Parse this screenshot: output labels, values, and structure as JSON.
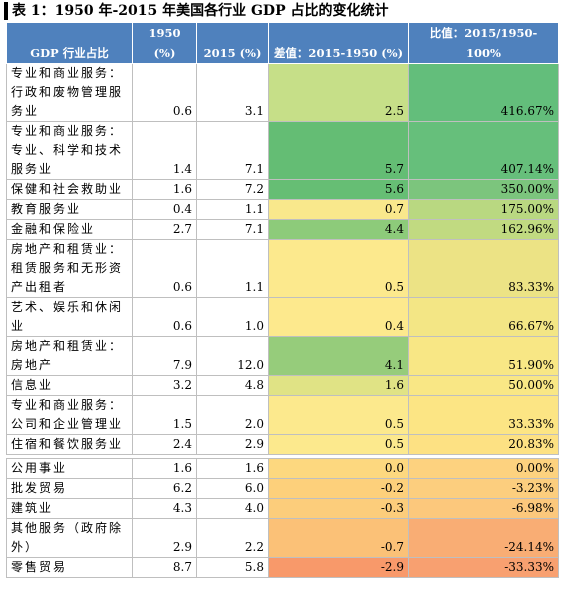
{
  "header": {
    "title": "表 1：1950 年-2015 年美国各行业 GDP 占比的变化统计"
  },
  "table": {
    "columns": [
      "GDP 行业占比",
      "1950 (%)",
      "2015 (%)",
      "差值：2015-1950 (%)",
      "比值：2015/1950-100%"
    ],
    "rows": [
      {
        "cells": [
          "专业和商业服务：行政和废物管理服务业",
          "0.6",
          "3.1",
          "2.5",
          "416.67%"
        ],
        "colors": [
          "#c6df88",
          "#63be7b"
        ]
      },
      {
        "cells": [
          "专业和商业服务：专业、科学和技术服务业",
          "1.4",
          "7.1",
          "5.7",
          "407.14%"
        ],
        "colors": [
          "#64bd74",
          "#66bf7b"
        ]
      },
      {
        "cells": [
          "保健和社会救助业",
          "1.6",
          "7.2",
          "5.6",
          "350.00%"
        ],
        "colors": [
          "#66be74",
          "#7cc57d"
        ]
      },
      {
        "cells": [
          "教育服务业",
          "0.4",
          "1.1",
          "0.7",
          "175.00%"
        ],
        "colors": [
          "#f9e88c",
          "#b9d881"
        ]
      },
      {
        "cells": [
          "金融和保险业",
          "2.7",
          "7.1",
          "4.4",
          "162.96%"
        ],
        "colors": [
          "#8dcb7a",
          "#c1da81"
        ]
      },
      {
        "cells": [
          "房地产和租赁业：租赁服务和无形资产出租者",
          "0.6",
          "1.1",
          "0.5",
          "83.33%"
        ],
        "colors": [
          "#fce98d",
          "#ece385"
        ]
      },
      {
        "cells": [
          "艺术、娱乐和休闲业",
          "0.6",
          "1.0",
          "0.4",
          "66.67%"
        ],
        "colors": [
          "#fde98d",
          "#f3e685"
        ]
      },
      {
        "cells": [
          "房地产和租赁业：房地产",
          "7.9",
          "12.0",
          "4.1",
          "51.90%"
        ],
        "colors": [
          "#96cc7b",
          "#f8e785"
        ]
      },
      {
        "cells": [
          "信息业",
          "3.2",
          "4.8",
          "1.6",
          "50.00%"
        ],
        "colors": [
          "#e0e385",
          "#f9e785"
        ]
      },
      {
        "cells": [
          "专业和商业服务：公司和企业管理业",
          "1.5",
          "2.0",
          "0.5",
          "33.33%"
        ],
        "colors": [
          "#fce98d",
          "#fce584"
        ]
      },
      {
        "cells": [
          "住宿和餐饮服务业",
          "2.4",
          "2.9",
          "0.5",
          "20.83%"
        ],
        "colors": [
          "#fce98d",
          "#fde183"
        ]
      },
      {
        "cells": [
          "公用事业",
          "1.6",
          "1.6",
          "0.0",
          "0.00%"
        ],
        "colors": [
          "#fdd87f",
          "#fdd27f"
        ]
      },
      {
        "cells": [
          "批发贸易",
          "6.2",
          "6.0",
          "-0.2",
          "-3.23%"
        ],
        "colors": [
          "#fdd07b",
          "#fcce7e"
        ]
      },
      {
        "cells": [
          "建筑业",
          "4.3",
          "4.0",
          "-0.3",
          "-6.98%"
        ],
        "colors": [
          "#fccd7b",
          "#fcc87c"
        ]
      },
      {
        "cells": [
          "其他服务（政府除外）",
          "2.9",
          "2.2",
          "-0.7",
          "-24.14%"
        ],
        "colors": [
          "#fbc177",
          "#f9ad74"
        ]
      },
      {
        "cells": [
          "零售贸易",
          "8.7",
          "5.8",
          "-2.9",
          "-33.33%"
        ],
        "colors": [
          "#f8996a",
          "#f8a070"
        ]
      }
    ]
  }
}
